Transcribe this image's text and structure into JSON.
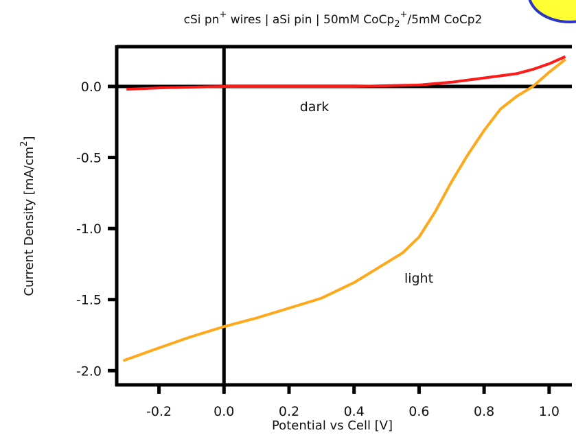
{
  "chart_data": {
    "type": "line",
    "title": [
      "cSi pn",
      "+",
      " wires | aSi pin | 50mM CoCp",
      "2",
      "+",
      "/5mM CoCp2"
    ],
    "x_label": "Potential vs Cell [V]",
    "y_label": [
      "Current Density [mA/cm",
      "2",
      "]"
    ],
    "xlim": [
      -0.33,
      1.07
    ],
    "ylim": [
      -2.1,
      0.28
    ],
    "xticks": [
      -0.2,
      {
        "value": 0,
        "label": "0.0"
      },
      0.2,
      0.4,
      0.6,
      0.8,
      {
        "value": 1,
        "label": "1.0"
      }
    ],
    "yticks": [
      {
        "value": 0,
        "label": "0.0"
      },
      -0.5,
      {
        "value": -1,
        "label": "-1.0"
      },
      -1.5,
      {
        "value": -2,
        "label": "-2.0"
      }
    ],
    "series": [
      {
        "name": "dark",
        "color": "#ff1a1a",
        "x": [
          -0.3,
          -0.2,
          -0.1,
          0,
          0.2,
          0.4,
          0.6,
          0.7,
          0.8,
          0.9,
          0.95,
          1.0,
          1.05
        ],
        "values": [
          -0.02,
          -0.01,
          -0.005,
          0,
          0,
          0,
          0.01,
          0.03,
          0.06,
          0.09,
          0.12,
          0.16,
          0.21
        ]
      },
      {
        "name": "light",
        "color": "#ffa81a",
        "x": [
          -0.31,
          -0.2,
          -0.1,
          0,
          0.1,
          0.2,
          0.3,
          0.4,
          0.5,
          0.55,
          0.6,
          0.65,
          0.7,
          0.75,
          0.8,
          0.85,
          0.9,
          0.95,
          1.0,
          1.05
        ],
        "values": [
          -1.93,
          -1.84,
          -1.76,
          -1.69,
          -1.63,
          -1.56,
          -1.49,
          -1.38,
          -1.24,
          -1.17,
          -1.06,
          -0.88,
          -0.67,
          -0.48,
          -0.31,
          -0.16,
          -0.07,
          0,
          0.1,
          0.19
        ]
      }
    ]
  }
}
